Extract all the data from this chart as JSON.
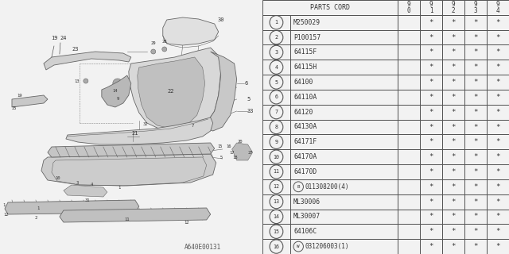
{
  "watermark": "A640E00131",
  "bg_color": "#f2f2f2",
  "diagram_bg": "#ffffff",
  "table": {
    "header_col": "PARTS CORD",
    "header_years": [
      "9\n0",
      "9\n1",
      "9\n2",
      "9\n3",
      "9\n4"
    ],
    "rows": [
      {
        "num": "1",
        "prefix": "",
        "part": "M250029",
        "vals": [
          "",
          "*",
          "*",
          "*",
          "*"
        ]
      },
      {
        "num": "2",
        "prefix": "",
        "part": "P100157",
        "vals": [
          "",
          "*",
          "*",
          "*",
          "*"
        ]
      },
      {
        "num": "3",
        "prefix": "",
        "part": "64115F",
        "vals": [
          "",
          "*",
          "*",
          "*",
          "*"
        ]
      },
      {
        "num": "4",
        "prefix": "",
        "part": "64115H",
        "vals": [
          "",
          "*",
          "*",
          "*",
          "*"
        ]
      },
      {
        "num": "5",
        "prefix": "",
        "part": "64100",
        "vals": [
          "",
          "*",
          "*",
          "*",
          "*"
        ]
      },
      {
        "num": "6",
        "prefix": "",
        "part": "64110A",
        "vals": [
          "",
          "*",
          "*",
          "*",
          "*"
        ]
      },
      {
        "num": "7",
        "prefix": "",
        "part": "64120",
        "vals": [
          "",
          "*",
          "*",
          "*",
          "*"
        ]
      },
      {
        "num": "8",
        "prefix": "",
        "part": "64130A",
        "vals": [
          "",
          "*",
          "*",
          "*",
          "*"
        ]
      },
      {
        "num": "9",
        "prefix": "",
        "part": "64171F",
        "vals": [
          "",
          "*",
          "*",
          "*",
          "*"
        ]
      },
      {
        "num": "10",
        "prefix": "",
        "part": "64170A",
        "vals": [
          "",
          "*",
          "*",
          "*",
          "*"
        ]
      },
      {
        "num": "11",
        "prefix": "",
        "part": "64170D",
        "vals": [
          "",
          "*",
          "*",
          "*",
          "*"
        ]
      },
      {
        "num": "12",
        "prefix": "B",
        "part": "011308200(4)",
        "vals": [
          "",
          "*",
          "*",
          "*",
          "*"
        ]
      },
      {
        "num": "13",
        "prefix": "",
        "part": "ML30006",
        "vals": [
          "",
          "*",
          "*",
          "*",
          "*"
        ]
      },
      {
        "num": "14",
        "prefix": "",
        "part": "ML30007",
        "vals": [
          "",
          "*",
          "*",
          "*",
          "*"
        ]
      },
      {
        "num": "15",
        "prefix": "",
        "part": "64106C",
        "vals": [
          "",
          "*",
          "*",
          "*",
          "*"
        ]
      },
      {
        "num": "16",
        "prefix": "W",
        "part": "031206003(1)",
        "vals": [
          "",
          "*",
          "*",
          "*",
          "*"
        ]
      }
    ]
  }
}
